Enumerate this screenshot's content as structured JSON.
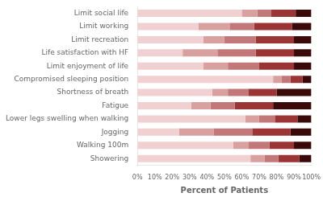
{
  "chart_data": {
    "type": "bar",
    "orientation": "horizontal",
    "stacked": true,
    "grid": false,
    "categories": [
      "Limit social life",
      "Limit working",
      "Limit recreation",
      "Life satisfaction with HF",
      "Limit enjoyment of life",
      "Compromised sleeping position",
      "Shortness of breath",
      "Fatigue",
      "Lower legs swelling when walking",
      "Jogging",
      "Walking 100m",
      "Showering"
    ],
    "series": [
      {
        "color": "#f0d0d0",
        "values": [
          60,
          35,
          38,
          26,
          38,
          78,
          43,
          31,
          62,
          24,
          55,
          65
        ]
      },
      {
        "color": "#d9a0a0",
        "values": [
          9,
          18,
          12,
          20,
          14,
          5,
          9,
          11,
          8,
          20,
          9,
          8
        ]
      },
      {
        "color": "#c27878",
        "values": [
          8,
          14,
          18,
          22,
          18,
          5,
          12,
          14,
          9,
          22,
          12,
          8
        ]
      },
      {
        "color": "#9b3535",
        "values": [
          14,
          22,
          22,
          22,
          20,
          7,
          16,
          22,
          13,
          22,
          14,
          12
        ]
      },
      {
        "color": "#3a0a0a",
        "values": [
          9,
          11,
          10,
          10,
          10,
          5,
          20,
          22,
          8,
          12,
          10,
          7
        ]
      }
    ],
    "xlabel": "Percent of Patients",
    "xlim": [
      0,
      100
    ],
    "xticks": [
      {
        "value": 0,
        "label": "0%"
      },
      {
        "value": 10,
        "label": "10%"
      },
      {
        "value": 20,
        "label": "20%"
      },
      {
        "value": 30,
        "label": "30%"
      },
      {
        "value": 40,
        "label": "40%"
      },
      {
        "value": 50,
        "label": "50%"
      },
      {
        "value": 60,
        "label": "60%"
      },
      {
        "value": 70,
        "label": "70%"
      },
      {
        "value": 80,
        "label": "80%"
      },
      {
        "value": 90,
        "label": "90%"
      },
      {
        "value": 100,
        "label": "100%"
      }
    ]
  }
}
